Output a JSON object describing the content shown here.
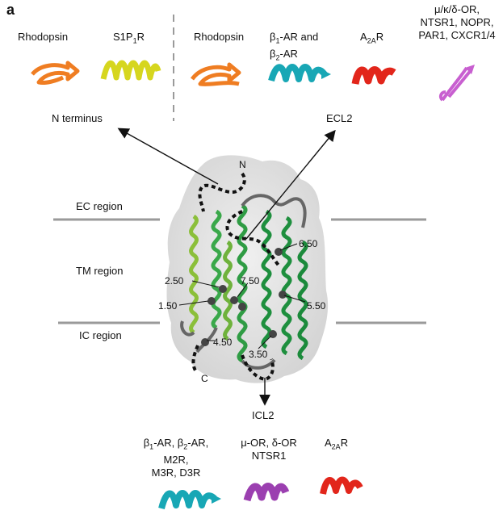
{
  "panel_letter": "a",
  "top_left": {
    "left_item": "Rhodopsin",
    "right_item_main": "S1P",
    "right_item_sub": "1",
    "right_item_tail": "R"
  },
  "top_right": {
    "item1": "Rhodopsin",
    "item2_line1_pre": "β",
    "item2_line1_sub": "1",
    "item2_line1_post": "-AR and",
    "item2_line2_pre": "β",
    "item2_line2_sub": "2",
    "item2_line2_post": "-AR",
    "item3_pre": "A",
    "item3_sub": "2A",
    "item3_post": "R",
    "item4_line1": "μ/κ/δ-OR,",
    "item4_line2": "NTSR1, NOPR,",
    "item4_line3": "PAR1, CXCR1/4"
  },
  "callouts": {
    "n_terminus": "N terminus",
    "ecl2": "ECL2",
    "icl2": "ICL2"
  },
  "regions": {
    "ec": "EC region",
    "tm": "TM region",
    "ic": "IC region"
  },
  "termini": {
    "n": "N",
    "c": "C"
  },
  "positions": {
    "p650": "6.50",
    "p250": "2.50",
    "p750": "7.50",
    "p150": "1.50",
    "p550": "5.50",
    "p450": "4.50",
    "p350": "3.50"
  },
  "bottom": {
    "group1_line1_pre": "β",
    "group1_line1_sub1": "1",
    "group1_line1_mid": "-AR, β",
    "group1_line1_sub2": "2",
    "group1_line1_post": "-AR,",
    "group1_line2": "M2R,",
    "group1_line3": "M3R, D3R",
    "group2_line1": "μ-OR, δ-OR",
    "group2_line2": "NTSR1",
    "group3_pre": "A",
    "group3_sub": "2A",
    "group3_post": "R"
  },
  "colors": {
    "orange": "#ef7d22",
    "yellow": "#d6d61e",
    "cyan": "#18a7b5",
    "red": "#e2261b",
    "magenta": "#c85fd0",
    "purple": "#9b3fb0",
    "green_dark": "#1e8f3e",
    "green_mid": "#3aa84a",
    "green_light": "#8bbf3a",
    "grey_loop": "#555555",
    "surface": "#d9d9d9",
    "region_line": "#9a9a9a"
  }
}
